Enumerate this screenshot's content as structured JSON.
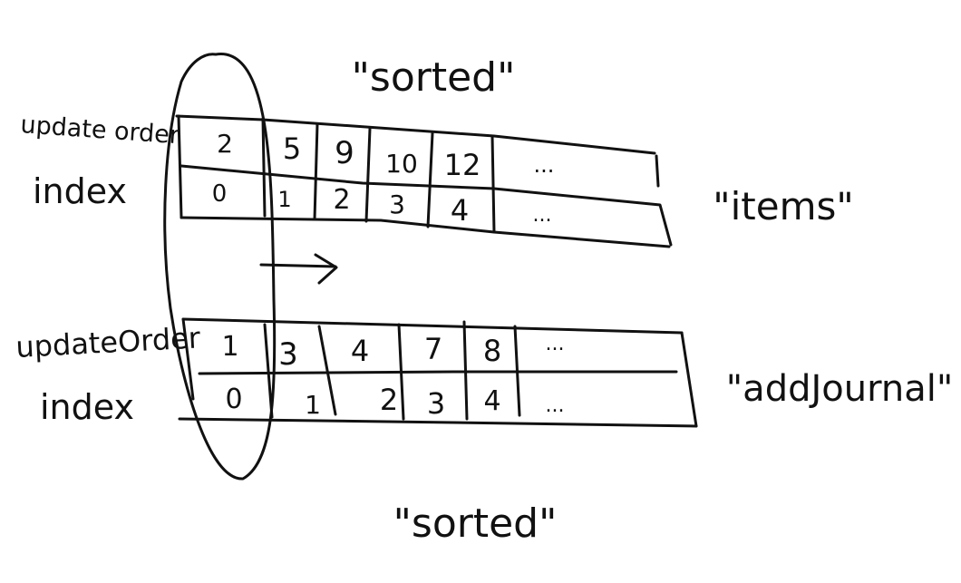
{
  "colors": {
    "ink": "#111111",
    "paper": "#ffffff"
  },
  "top_label": "\"sorted\"",
  "bottom_label": "\"sorted\"",
  "items_array": {
    "name_label": "\"items\"",
    "row_labels": [
      "update order",
      "index"
    ],
    "update_order": [
      "2",
      "5",
      "9",
      "10",
      "12",
      "..."
    ],
    "index": [
      "0",
      "1",
      "2",
      "3",
      "4",
      "..."
    ]
  },
  "journal_array": {
    "name_label": "\"addJournal\"",
    "row_labels": [
      "updateOrder",
      "index"
    ],
    "update_order": [
      "1",
      "3",
      "4",
      "7",
      "8",
      "..."
    ],
    "index": [
      "0",
      "1",
      "2",
      "3",
      "4",
      "..."
    ]
  },
  "annotations": {
    "ellipse": "circles-first-elements",
    "arrow": "right-arrow"
  }
}
